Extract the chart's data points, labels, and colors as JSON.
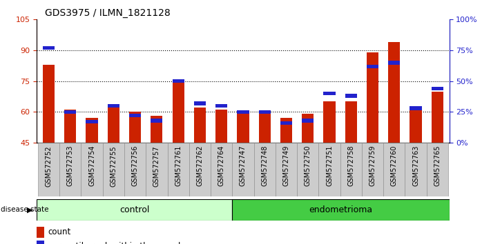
{
  "title": "GDS3975 / ILMN_1821128",
  "samples": [
    "GSM572752",
    "GSM572753",
    "GSM572754",
    "GSM572755",
    "GSM572756",
    "GSM572757",
    "GSM572761",
    "GSM572762",
    "GSM572764",
    "GSM572747",
    "GSM572748",
    "GSM572749",
    "GSM572750",
    "GSM572751",
    "GSM572758",
    "GSM572759",
    "GSM572760",
    "GSM572763",
    "GSM572765"
  ],
  "counts": [
    83,
    61,
    57,
    62,
    60,
    58,
    76,
    62,
    61,
    60,
    60,
    57,
    59,
    65,
    65,
    89,
    94,
    62,
    70
  ],
  "percentiles": [
    77,
    25,
    17,
    30,
    22,
    18,
    50,
    32,
    30,
    25,
    25,
    16,
    18,
    40,
    38,
    62,
    65,
    28,
    44
  ],
  "control_count": 9,
  "endometrioma_count": 10,
  "ylim_left": [
    45,
    105
  ],
  "ylim_right": [
    0,
    100
  ],
  "yticks_left": [
    45,
    60,
    75,
    90,
    105
  ],
  "yticks_right": [
    0,
    25,
    50,
    75,
    100
  ],
  "ytick_labels_right": [
    "0%",
    "25%",
    "50%",
    "75%",
    "100%"
  ],
  "bar_color_red": "#cc2200",
  "bar_color_blue": "#2222cc",
  "control_bg": "#ccffcc",
  "endometrioma_bg": "#44cc44",
  "tick_bg": "#cccccc",
  "bar_width": 0.55,
  "label_fontsize": 7,
  "axis_fontsize": 8
}
